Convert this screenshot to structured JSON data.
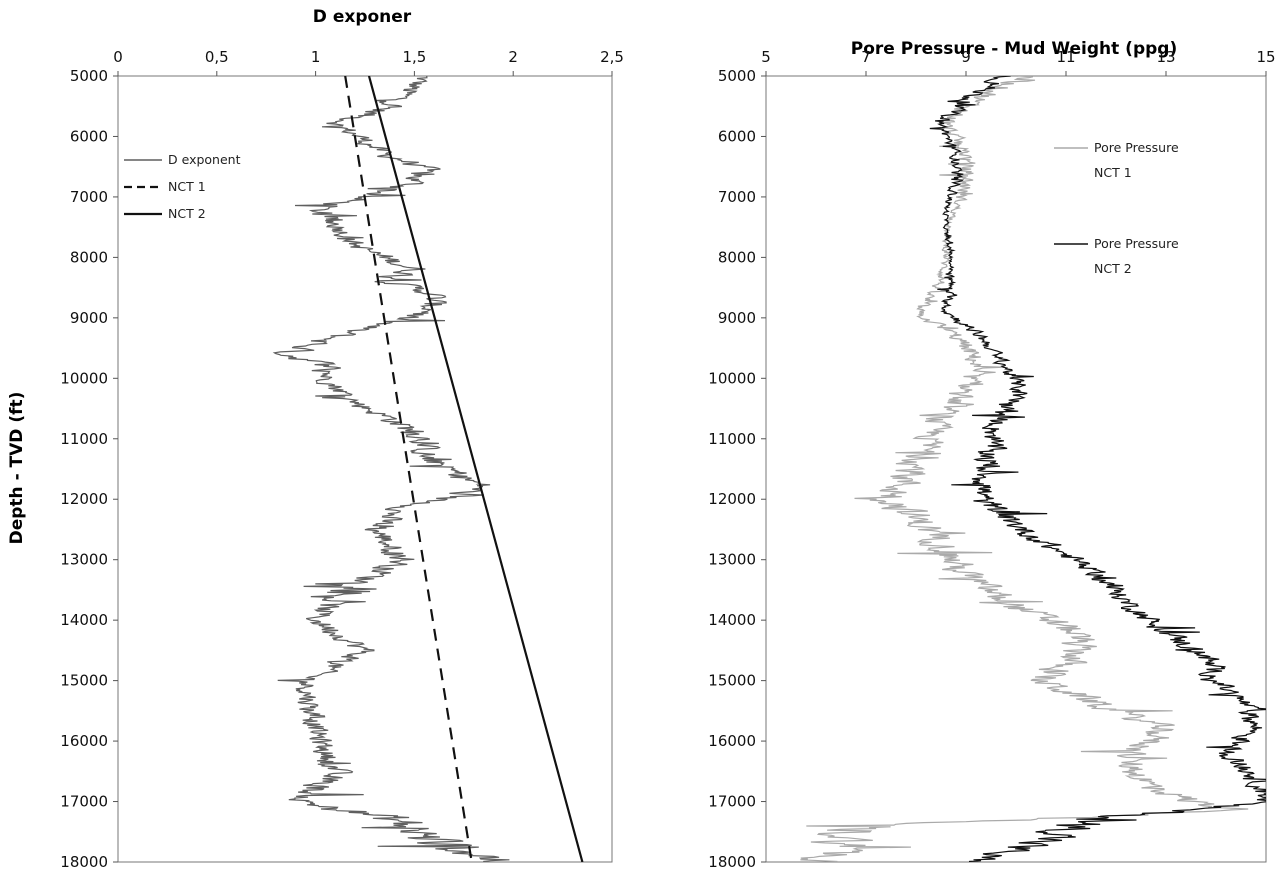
{
  "chart_data": [
    {
      "type": "line",
      "title": "D exponer",
      "xlabel": "",
      "ylabel": "Depth - TVD (ft)",
      "x_axis_position": "top",
      "xlim": [
        0,
        2.5
      ],
      "ylim": [
        5000,
        18000
      ],
      "y_inverted": true,
      "grid": false,
      "legend_position": "upper-left inside",
      "x_ticks": [
        "0",
        "0,5",
        "1",
        "1,5",
        "2",
        "2,5"
      ],
      "x_tick_values": [
        0,
        0.5,
        1,
        1.5,
        2,
        2.5
      ],
      "y_ticks": [
        "5000",
        "6000",
        "7000",
        "8000",
        "9000",
        "10000",
        "11000",
        "12000",
        "13000",
        "14000",
        "15000",
        "16000",
        "17000",
        "18000"
      ],
      "y_tick_values": [
        5000,
        6000,
        7000,
        8000,
        9000,
        10000,
        11000,
        12000,
        13000,
        14000,
        15000,
        16000,
        17000,
        18000
      ],
      "series": [
        {
          "name": "D exponent",
          "style": "noisy",
          "color": "#5f5f5f",
          "x": [
            1.55,
            1.38,
            1.1,
            1.22,
            1.35,
            1.55,
            1.48,
            1.0,
            1.12,
            1.2,
            1.5,
            1.38,
            1.6,
            1.58,
            1.2,
            0.85,
            1.08,
            1.05,
            1.2,
            1.4,
            1.55,
            1.55,
            1.85,
            1.4,
            1.3,
            1.45,
            1.1,
            1.0,
            1.25,
            0.95,
            0.97,
            1.0,
            1.05,
            1.1,
            0.92,
            1.4,
            1.55,
            1.95
          ],
          "y": [
            5000,
            5500,
            5800,
            6000,
            6300,
            6500,
            6800,
            7200,
            7500,
            7800,
            8200,
            8400,
            8600,
            8900,
            9200,
            9600,
            9800,
            10000,
            10400,
            10700,
            11000,
            11300,
            11800,
            12200,
            12500,
            13000,
            13600,
            14000,
            14500,
            15000,
            15400,
            15800,
            16200,
            16500,
            17000,
            17300,
            17600,
            18000
          ],
          "amplitude": [
            0.07,
            0.1,
            0.08,
            0.08,
            0.09,
            0.1,
            0.1,
            0.1,
            0.08,
            0.08,
            0.1,
            0.1,
            0.1,
            0.1,
            0.1,
            0.12,
            0.1,
            0.08,
            0.08,
            0.1,
            0.1,
            0.1,
            0.1,
            0.1,
            0.1,
            0.1,
            0.1,
            0.09,
            0.09,
            0.08,
            0.08,
            0.08,
            0.08,
            0.1,
            0.12,
            0.2,
            0.22,
            0.22
          ]
        },
        {
          "name": "NCT 1",
          "style": "dashed",
          "color": "#111111",
          "x": [
            1.15,
            1.79
          ],
          "y": [
            5000,
            18000
          ]
        },
        {
          "name": "NCT 2",
          "style": "solid",
          "color": "#111111",
          "x": [
            1.27,
            2.35
          ],
          "y": [
            5000,
            18000
          ]
        }
      ]
    },
    {
      "type": "line",
      "title": "Pore Pressure - Mud Weight (ppg)",
      "xlabel": "",
      "ylabel": "",
      "x_axis_position": "top",
      "xlim": [
        5,
        15
      ],
      "ylim": [
        5000,
        18000
      ],
      "y_inverted": true,
      "grid": false,
      "legend_position": "upper-right inside",
      "x_ticks": [
        "5",
        "7",
        "9",
        "11",
        "13",
        "15"
      ],
      "x_tick_values": [
        5,
        7,
        9,
        11,
        13,
        15
      ],
      "y_ticks": [
        "5000",
        "6000",
        "7000",
        "8000",
        "9000",
        "10000",
        "11000",
        "12000",
        "13000",
        "14000",
        "15000",
        "16000",
        "17000",
        "18000"
      ],
      "y_tick_values": [
        5000,
        6000,
        7000,
        8000,
        9000,
        10000,
        11000,
        12000,
        13000,
        14000,
        15000,
        16000,
        17000,
        18000
      ],
      "series": [
        {
          "name": "Pore Pressure NCT 1",
          "legend_lines": [
            "Pore Pressure",
            "NCT 1"
          ],
          "style": "noisy",
          "color": "#aaaaaa",
          "x": [
            10.2,
            9.2,
            8.6,
            9.0,
            9.0,
            8.8,
            8.6,
            8.6,
            8.5,
            8.0,
            8.8,
            9.2,
            9.0,
            8.4,
            8.2,
            7.5,
            8.4,
            8.9,
            9.8,
            11.2,
            11.2,
            10.5,
            12.0,
            13.0,
            12.2,
            12.6,
            13.5,
            14.5,
            6.8,
            6.3
          ],
          "y": [
            5000,
            5400,
            5800,
            6300,
            6800,
            7200,
            7600,
            8000,
            8400,
            8900,
            9300,
            9700,
            10200,
            10700,
            11200,
            12000,
            12600,
            13200,
            13700,
            14200,
            14600,
            15000,
            15500,
            15800,
            16300,
            16700,
            17000,
            17150,
            17400,
            18000
          ],
          "amplitude": [
            0.35,
            0.3,
            0.2,
            0.25,
            0.25,
            0.1,
            0.08,
            0.1,
            0.15,
            0.2,
            0.25,
            0.3,
            0.35,
            0.4,
            0.45,
            0.6,
            0.5,
            0.5,
            0.5,
            0.5,
            0.5,
            0.5,
            0.45,
            0.45,
            0.45,
            0.5,
            0.5,
            0.5,
            1.0,
            0.8
          ]
        },
        {
          "name": "Pore Pressure NCT 2",
          "legend_lines": [
            "Pore Pressure",
            "NCT 2"
          ],
          "style": "noisy",
          "color": "#111111",
          "x": [
            9.8,
            9.0,
            8.5,
            8.8,
            8.8,
            8.6,
            8.6,
            8.7,
            8.7,
            8.6,
            9.3,
            9.7,
            10.1,
            9.6,
            9.5,
            9.3,
            10.3,
            11.6,
            12.2,
            13.0,
            13.8,
            14.0,
            14.6,
            14.8,
            14.2,
            14.8,
            15.0,
            11.5,
            10.8,
            9.0
          ],
          "y": [
            5000,
            5400,
            5800,
            6300,
            6800,
            7200,
            7600,
            8000,
            8400,
            8900,
            9300,
            9700,
            10200,
            10700,
            11200,
            12000,
            12600,
            13200,
            13700,
            14200,
            14600,
            15000,
            15400,
            15800,
            16200,
            16600,
            17000,
            17300,
            17600,
            18000
          ],
          "amplitude": [
            0.3,
            0.25,
            0.15,
            0.15,
            0.15,
            0.08,
            0.05,
            0.05,
            0.1,
            0.15,
            0.2,
            0.2,
            0.25,
            0.3,
            0.35,
            0.4,
            0.35,
            0.3,
            0.3,
            0.35,
            0.35,
            0.3,
            0.3,
            0.3,
            0.3,
            0.3,
            0.3,
            0.8,
            0.7,
            0.5
          ]
        }
      ]
    }
  ]
}
